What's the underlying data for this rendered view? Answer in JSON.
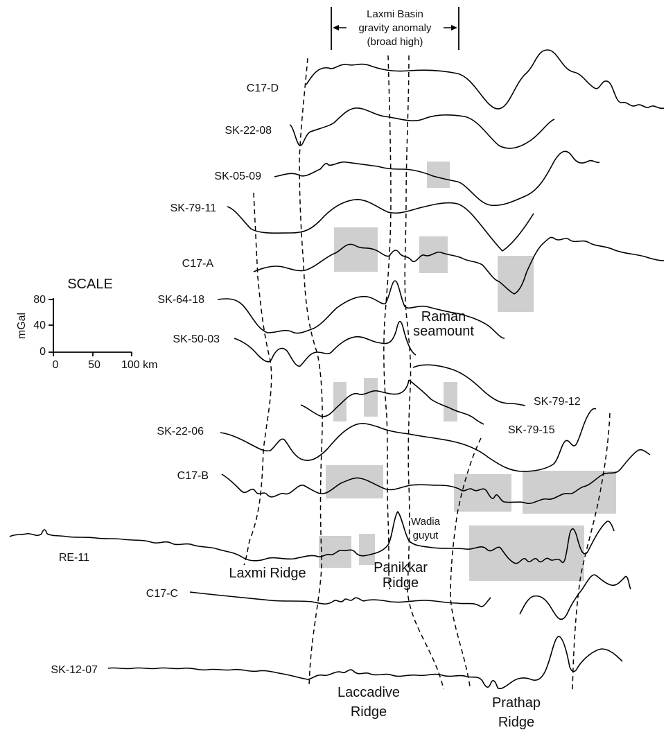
{
  "header": {
    "basin_label": [
      "Laxmi Basin",
      "gravity anomaly",
      "(broad high)"
    ]
  },
  "profiles": [
    {
      "id": "C17-D",
      "label": "C17-D"
    },
    {
      "id": "SK-22-08",
      "label": "SK-22-08"
    },
    {
      "id": "SK-05-09",
      "label": "SK-05-09"
    },
    {
      "id": "SK-79-11",
      "label": "SK-79-11"
    },
    {
      "id": "C17-A",
      "label": "C17-A"
    },
    {
      "id": "SK-64-18",
      "label": "SK-64-18"
    },
    {
      "id": "SK-50-03",
      "label": "SK-50-03"
    },
    {
      "id": "SK-79-12",
      "label": "SK-79-12"
    },
    {
      "id": "SK-79-15",
      "label": "SK-79-15"
    },
    {
      "id": "SK-22-06",
      "label": "SK-22-06"
    },
    {
      "id": "C17-B",
      "label": "C17-B"
    },
    {
      "id": "RE-11",
      "label": "RE-11"
    },
    {
      "id": "C17-C",
      "label": "C17-C"
    },
    {
      "id": "SK-12-07",
      "label": "SK-12-07"
    }
  ],
  "features": {
    "raman": [
      "Raman",
      "seamount"
    ],
    "wadia": [
      "Wadia",
      "guyut"
    ],
    "laxmi_ridge": "Laxmi Ridge",
    "panikkar": [
      "Panikkar",
      "Ridge"
    ],
    "laccadive": [
      "Laccadive",
      "Ridge"
    ],
    "prathap": [
      "Prathap",
      "Ridge"
    ]
  },
  "scale": {
    "title": "SCALE",
    "y_unit": "mGal",
    "y_ticks": [
      "80",
      "40",
      "0"
    ],
    "x_ticks": [
      "0",
      "50",
      "100 km"
    ]
  }
}
